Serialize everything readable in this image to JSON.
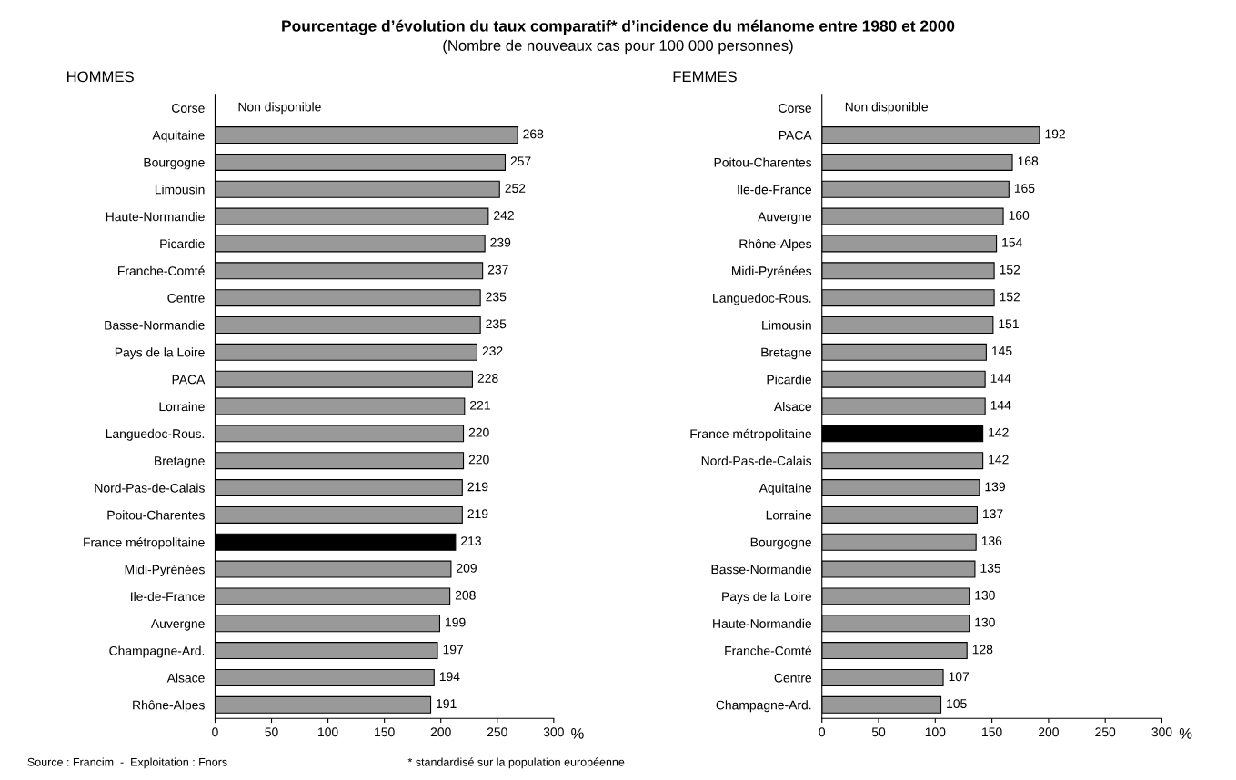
{
  "chart_data": [
    {
      "type": "bar",
      "orientation": "horizontal",
      "title": "Pourcentage d’évolution du taux comparatif* d’incidence du mélanome entre 1980 et 2000",
      "subtitle": "(Nombre de nouveaux cas pour 100 000 personnes)",
      "xlabel": "%",
      "categories": [
        "Corse",
        "Aquitaine",
        "Bourgogne",
        "Limousin",
        "Haute-Normandie",
        "Picardie",
        "Franche-Comté",
        "Centre",
        "Basse-Normandie",
        "Pays de la Loire",
        "PACA",
        "Lorraine",
        "Languedoc-Rous.",
        "Bretagne",
        "Nord-Pas-de-Calais",
        "Poitou-Charentes",
        "France métropolitaine",
        "Midi-Pyrénées",
        "Ile-de-France",
        "Auvergne",
        "Champagne-Ard.",
        "Alsace",
        "Rhône-Alpes"
      ],
      "values": [
        null,
        268,
        257,
        252,
        242,
        239,
        237,
        235,
        235,
        232,
        228,
        221,
        220,
        220,
        219,
        219,
        213,
        209,
        208,
        199,
        197,
        194,
        191
      ],
      "colors": [
        "#999999",
        "#999999",
        "#999999",
        "#999999",
        "#999999",
        "#999999",
        "#999999",
        "#999999",
        "#999999",
        "#999999",
        "#999999",
        "#999999",
        "#999999",
        "#999999",
        "#999999",
        "#999999",
        "#000000",
        "#999999",
        "#999999",
        "#999999",
        "#999999",
        "#999999",
        "#999999"
      ],
      "xlim": [
        0,
        300
      ],
      "xticks": [
        0,
        50,
        100,
        150,
        200,
        250,
        300
      ],
      "data_labels": true,
      "grid": false,
      "legend": false,
      "annotations": [
        "HOMMES",
        "Non disponible",
        "Source : Francim  -  Exploitation : Fnors",
        "* standardisé sur la population européenne"
      ]
    },
    {
      "type": "bar",
      "orientation": "horizontal",
      "xlabel": "%",
      "categories": [
        "Corse",
        "PACA",
        "Poitou-Charentes",
        "Ile-de-France",
        "Auvergne",
        "Rhône-Alpes",
        "Midi-Pyrénées",
        "Languedoc-Rous.",
        "Limousin",
        "Bretagne",
        "Picardie",
        "Alsace",
        "France métropolitaine",
        "Nord-Pas-de-Calais",
        "Aquitaine",
        "Lorraine",
        "Bourgogne",
        "Basse-Normandie",
        "Pays de la Loire",
        "Haute-Normandie",
        "Franche-Comté",
        "Centre",
        "Champagne-Ard."
      ],
      "values": [
        null,
        192,
        168,
        165,
        160,
        154,
        152,
        152,
        151,
        145,
        144,
        144,
        142,
        142,
        139,
        137,
        136,
        135,
        130,
        130,
        128,
        107,
        105
      ],
      "colors": [
        "#999999",
        "#999999",
        "#999999",
        "#999999",
        "#999999",
        "#999999",
        "#999999",
        "#999999",
        "#999999",
        "#999999",
        "#999999",
        "#999999",
        "#000000",
        "#999999",
        "#999999",
        "#999999",
        "#999999",
        "#999999",
        "#999999",
        "#999999",
        "#999999",
        "#999999",
        "#999999"
      ],
      "xlim": [
        0,
        300
      ],
      "xticks": [
        0,
        50,
        100,
        150,
        200,
        250,
        300
      ],
      "data_labels": true,
      "grid": false,
      "legend": false,
      "annotations": [
        "FEMMES",
        "Non disponible"
      ]
    }
  ]
}
